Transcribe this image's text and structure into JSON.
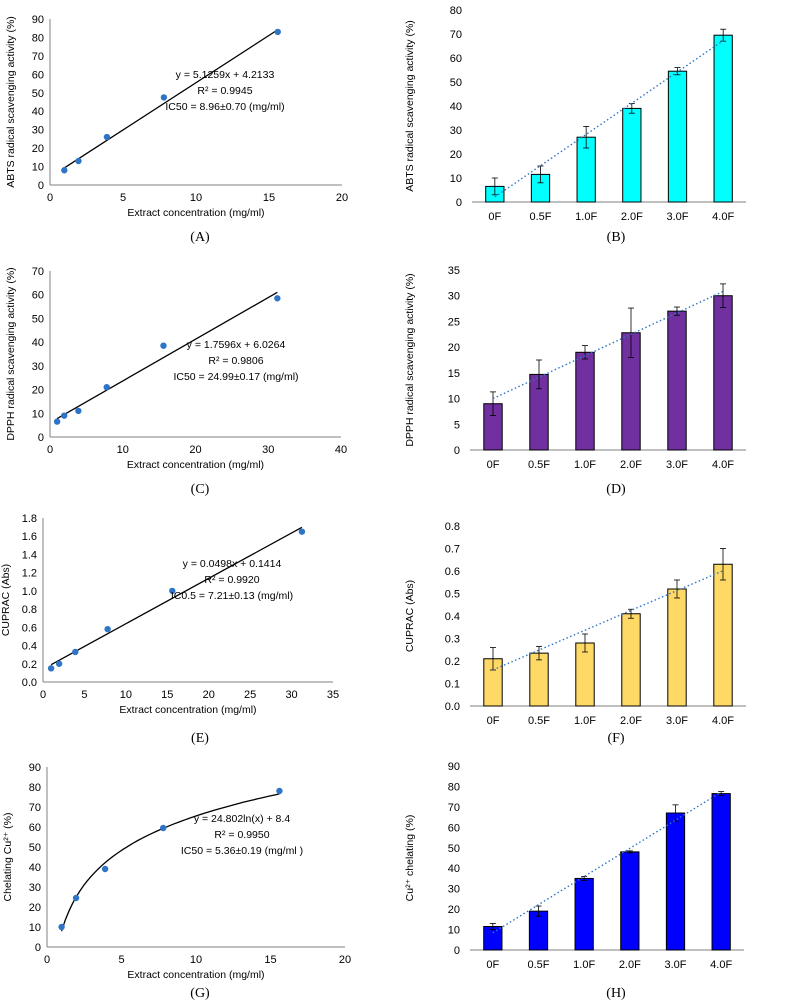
{
  "chart_data": [
    {
      "id": "A",
      "type": "scatter",
      "panel_label": "(A)",
      "xlabel": "Extract concentration (mg/ml)",
      "ylabel": "ABTS radical scavenging activity (%)",
      "xlim": [
        0,
        20
      ],
      "xstep": 5,
      "ylim": [
        0,
        90
      ],
      "ystep": 10,
      "x": [
        0.98,
        1.95,
        3.9,
        7.8,
        15.6
      ],
      "y": [
        8,
        13,
        26,
        47.5,
        83
      ],
      "fit": {
        "kind": "linear",
        "slope": 5.1259,
        "intercept": 4.2133
      },
      "annotations": [
        "y = 5.1259x + 4.2133",
        "R² = 0.9945",
        "IC50 = 8.96±0.70 (mg/ml)"
      ],
      "point_color": "#2E75C7"
    },
    {
      "id": "B",
      "type": "bar",
      "panel_label": "(B)",
      "ylabel": "ABTS radical scavenging activity (%)",
      "categories": [
        "0F",
        "0.5F",
        "1.0F",
        "2.0F",
        "3.0F",
        "4.0F"
      ],
      "values": [
        6.5,
        11.5,
        27,
        39,
        54.5,
        69.5
      ],
      "errors": [
        3.5,
        3.5,
        4.5,
        2,
        1.5,
        2.5
      ],
      "ylim": [
        0,
        80
      ],
      "ystep": 10,
      "bar_color": "#00FFFF",
      "trendline": true
    },
    {
      "id": "C",
      "type": "scatter",
      "panel_label": "(C)",
      "xlabel": "Extract concentration (mg/ml)",
      "ylabel": "DPPH radical scavenging activity (%)",
      "xlim": [
        0,
        40
      ],
      "xstep": 10,
      "ylim": [
        0,
        70
      ],
      "ystep": 10,
      "x": [
        0.98,
        1.95,
        3.9,
        7.8,
        15.6,
        31.25
      ],
      "y": [
        6.5,
        9,
        11,
        21,
        38.5,
        58.5
      ],
      "fit": {
        "kind": "linear",
        "slope": 1.7596,
        "intercept": 6.0264
      },
      "annotations": [
        "y = 1.7596x + 6.0264",
        "R² = 0.9806",
        "IC50 = 24.99±0.17 (mg/ml)"
      ],
      "point_color": "#2E75C7"
    },
    {
      "id": "D",
      "type": "bar",
      "panel_label": "(D)",
      "ylabel": "DPPH radical scavenging activity (%)",
      "categories": [
        "0F",
        "0.5F",
        "1.0F",
        "2.0F",
        "3.0F",
        "4.0F"
      ],
      "values": [
        9,
        14.7,
        19,
        22.8,
        27,
        30
      ],
      "errors": [
        2.3,
        2.8,
        1.3,
        4.8,
        0.8,
        2.3
      ],
      "ylim": [
        0,
        35
      ],
      "ystep": 5,
      "bar_color": "#7030A0",
      "trendline": true
    },
    {
      "id": "E",
      "type": "scatter",
      "panel_label": "(E)",
      "xlabel": "Extract concentration (mg/ml)",
      "ylabel": "CUPRAC (Abs)",
      "xlim": [
        0,
        35
      ],
      "xstep": 5,
      "ylim": [
        0,
        1.8
      ],
      "ystep": 0.2,
      "ydec": 1,
      "x": [
        0.98,
        1.95,
        3.9,
        7.8,
        15.6,
        31.25
      ],
      "y": [
        0.15,
        0.2,
        0.33,
        0.58,
        1.0,
        1.65
      ],
      "fit": {
        "kind": "linear",
        "slope": 0.0498,
        "intercept": 0.1414
      },
      "annotations": [
        "y = 0.0498x + 0.1414",
        "R² = 0.9920",
        "IC0.5 = 7.21±0.13 (mg/ml)"
      ],
      "point_color": "#2E75C7"
    },
    {
      "id": "F",
      "type": "bar",
      "panel_label": "(F)",
      "ylabel": "CUPRAC (Abs)",
      "categories": [
        "0F",
        "0.5F",
        "1.0F",
        "2.0F",
        "3.0F",
        "4.0F"
      ],
      "values": [
        0.21,
        0.235,
        0.28,
        0.41,
        0.52,
        0.63
      ],
      "errors": [
        0.05,
        0.03,
        0.04,
        0.02,
        0.04,
        0.07
      ],
      "ylim": [
        0,
        0.8
      ],
      "ystep": 0.1,
      "ydec": 1,
      "bar_color": "#FFD966",
      "trendline": true
    },
    {
      "id": "G",
      "type": "scatter",
      "panel_label": "(G)",
      "xlabel": "Extract concentration (mg/ml)",
      "ylabel": "Chelating Cu²⁺ (%)",
      "xlim": [
        0,
        20
      ],
      "xstep": 5,
      "ylim": [
        0,
        90
      ],
      "ystep": 10,
      "x": [
        0.98,
        1.95,
        3.9,
        7.8,
        15.6
      ],
      "y": [
        10,
        24.5,
        39,
        59.5,
        78
      ],
      "fit": {
        "kind": "log",
        "slope": 24.802,
        "intercept": 8.4
      },
      "annotations": [
        "y = 24.802ln(x) + 8.4",
        "R² = 0.9950",
        "IC50 = 5.36±0.19 (mg/ml )"
      ],
      "point_color": "#2E75C7"
    },
    {
      "id": "H",
      "type": "bar",
      "panel_label": "(H)",
      "ylabel": "Cu²⁺ chelating (%)",
      "categories": [
        "0F",
        "0.5F",
        "1.0F",
        "2.0F",
        "3.0F",
        "4.0F"
      ],
      "values": [
        11.5,
        19,
        35,
        48,
        67,
        76.5
      ],
      "errors": [
        1.5,
        2.5,
        1,
        0.5,
        4,
        1
      ],
      "ylim": [
        0,
        90
      ],
      "ystep": 10,
      "bar_color": "#0000FF",
      "trendline": true
    }
  ]
}
